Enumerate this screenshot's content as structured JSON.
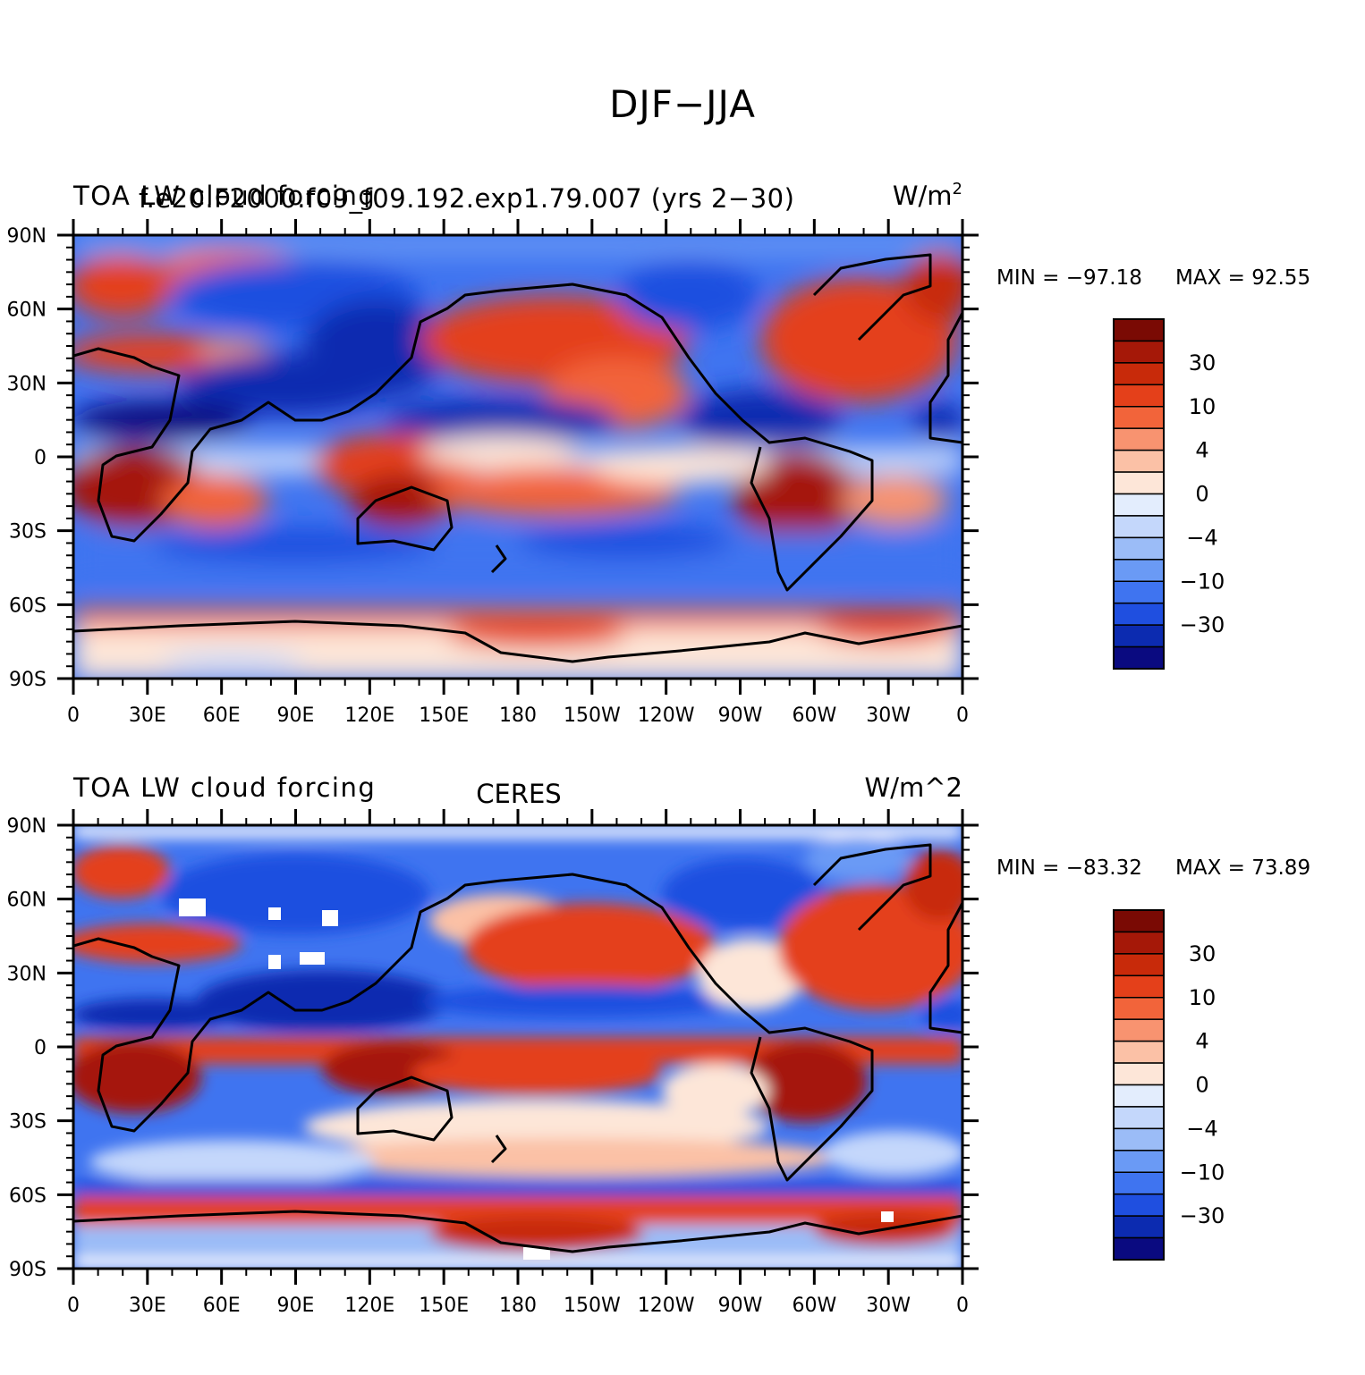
{
  "figure_title": "DJF−JJA",
  "palette": [
    "#0a0a80",
    "#0c2bb0",
    "#1f4fe0",
    "#3f74f0",
    "#6a9af5",
    "#9bbcf7",
    "#c4d7fb",
    "#e3edfd",
    "#fde6d8",
    "#fbc1a6",
    "#f89370",
    "#f2643a",
    "#e4401a",
    "#c82a0a",
    "#a51808",
    "#7a0a04"
  ],
  "panels": [
    {
      "left_title": "TOA LW cloud forcing",
      "overlap_title": "f.e20.F2000.f09_f09.192.exp1.79.007 (yrs 2−30)",
      "center_title": "",
      "units": "W/m",
      "units_sup": "2",
      "min_label": "MIN = −97.18",
      "max_label": "MAX =  92.55"
    },
    {
      "left_title": "TOA LW cloud forcing",
      "overlap_title": "",
      "center_title": "CERES",
      "units": "W/m^2",
      "units_sup": "",
      "min_label": "MIN = −83.32",
      "max_label": "MAX =  73.89"
    }
  ],
  "map_axes": {
    "lat_ticks": [
      "90N",
      "60N",
      "30N",
      "0",
      "30S",
      "60S",
      "90S"
    ],
    "lon_ticks": [
      "0",
      "30E",
      "60E",
      "90E",
      "120E",
      "150E",
      "180",
      "150W",
      "120W",
      "90W",
      "60W",
      "30W",
      "0"
    ],
    "lon_range": [
      0,
      360
    ],
    "lat_range": [
      -90,
      90
    ],
    "projection": "cylindrical equidistant"
  },
  "colorbar": {
    "labels": [
      "30",
      "10",
      "4",
      "0",
      "−4",
      "−10",
      "−30"
    ]
  }
}
